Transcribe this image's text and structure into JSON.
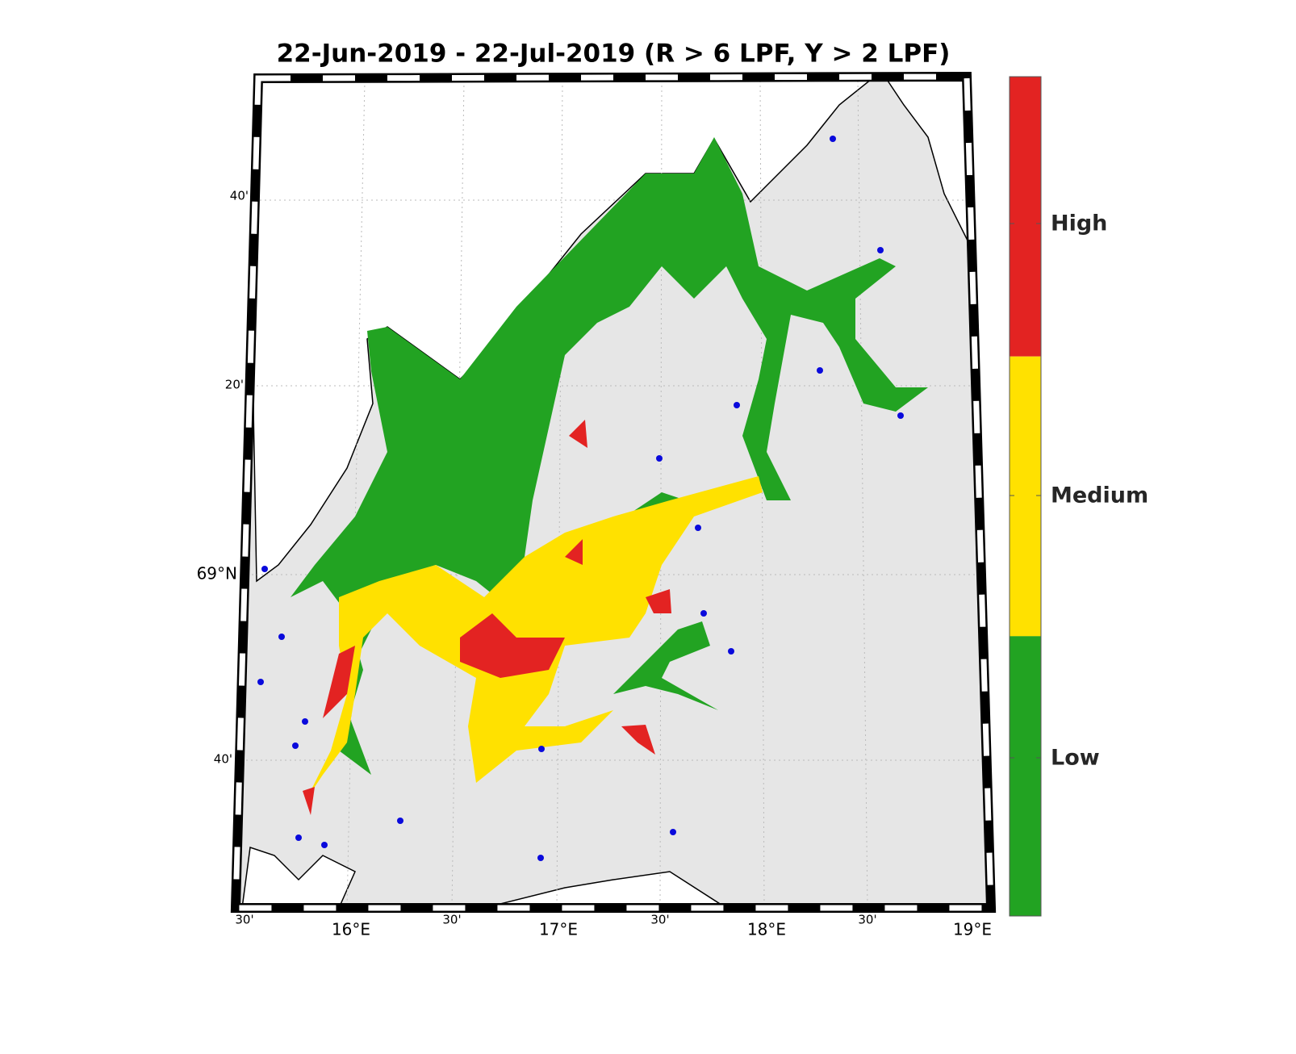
{
  "title": "22-Jun-2019  - 22-Jul-2019  (R > 6 LPF, Y > 2 LPF)",
  "colorbar": [
    {
      "label": "High",
      "color": "#e32322"
    },
    {
      "label": "Medium",
      "color": "#ffe100"
    },
    {
      "label": "Low",
      "color": "#22a322"
    }
  ],
  "map": {
    "lon_labels": [
      "30'",
      "16°E",
      "30'",
      "17°E",
      "30'",
      "18°E",
      "30'",
      "19°E"
    ],
    "lat_labels": [
      "40'",
      "20'",
      "69°N",
      "40'"
    ]
  }
}
